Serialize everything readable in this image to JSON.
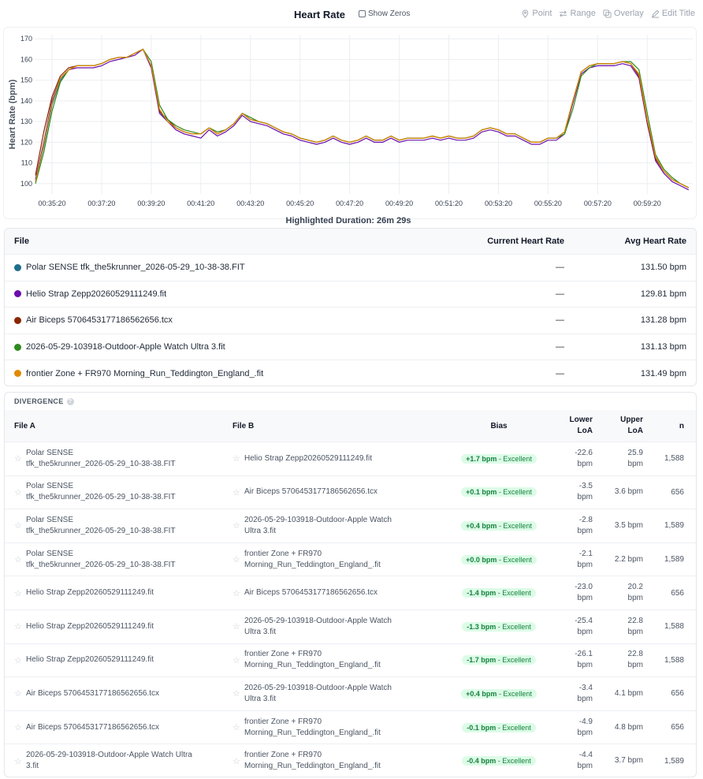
{
  "header": {
    "title": "Heart Rate",
    "show_zeros_label": "Show Zeros",
    "tools": [
      {
        "label": "Point",
        "icon": "pin-icon"
      },
      {
        "label": "Range",
        "icon": "range-arrows-icon"
      },
      {
        "label": "Overlay",
        "icon": "overlay-icon"
      },
      {
        "label": "Edit Title",
        "icon": "edit-icon"
      }
    ]
  },
  "chart_data": {
    "type": "line",
    "ylabel": "Heart Rate (bpm)",
    "xlabel": "",
    "ylim": [
      95,
      172
    ],
    "yticks": [
      100,
      110,
      120,
      130,
      140,
      150,
      160,
      170
    ],
    "xlim": [
      "00:34:40",
      "01:01:10"
    ],
    "xticks": [
      "00:35:20",
      "00:37:20",
      "00:39:20",
      "00:41:20",
      "00:43:20",
      "00:45:20",
      "00:47:20",
      "00:49:20",
      "00:51:20",
      "00:53:20",
      "00:55:20",
      "00:57:20",
      "00:59:20"
    ],
    "grid": true,
    "x": [
      "00:34:40",
      "00:35:00",
      "00:35:20",
      "00:35:40",
      "00:36:00",
      "00:36:20",
      "00:36:40",
      "00:37:00",
      "00:37:20",
      "00:37:40",
      "00:38:00",
      "00:38:20",
      "00:38:40",
      "00:39:00",
      "00:39:20",
      "00:39:40",
      "00:40:00",
      "00:40:20",
      "00:40:40",
      "00:41:00",
      "00:41:20",
      "00:41:40",
      "00:42:00",
      "00:42:20",
      "00:42:40",
      "00:43:00",
      "00:43:20",
      "00:43:40",
      "00:44:00",
      "00:44:20",
      "00:44:40",
      "00:45:00",
      "00:45:20",
      "00:45:40",
      "00:46:00",
      "00:46:20",
      "00:46:40",
      "00:47:00",
      "00:47:20",
      "00:47:40",
      "00:48:00",
      "00:48:20",
      "00:48:40",
      "00:49:00",
      "00:49:20",
      "00:49:40",
      "00:50:00",
      "00:50:20",
      "00:50:40",
      "00:51:00",
      "00:51:20",
      "00:51:40",
      "00:52:00",
      "00:52:20",
      "00:52:40",
      "00:53:00",
      "00:53:20",
      "00:53:40",
      "00:54:00",
      "00:54:20",
      "00:54:40",
      "00:55:00",
      "00:55:20",
      "00:55:40",
      "00:56:00",
      "00:56:20",
      "00:56:40",
      "00:57:00",
      "00:57:20",
      "00:57:40",
      "00:58:00",
      "00:58:20",
      "00:58:40",
      "00:59:00",
      "00:59:20",
      "00:59:40",
      "01:00:00",
      "01:00:20",
      "01:00:40",
      "01:01:00"
    ],
    "series": [
      {
        "color": "#1f6e8c",
        "values": [
          101,
          118,
          138,
          150,
          155,
          157,
          157,
          157,
          158,
          160,
          161,
          161,
          163,
          165,
          157,
          135,
          130,
          127,
          125,
          124,
          124,
          127,
          124,
          126,
          129,
          134,
          131,
          130,
          129,
          127,
          125,
          124,
          122,
          121,
          120,
          121,
          123,
          121,
          120,
          121,
          123,
          121,
          121,
          123,
          121,
          122,
          122,
          122,
          123,
          122,
          123,
          122,
          122,
          123,
          126,
          127,
          126,
          124,
          124,
          122,
          120,
          120,
          122,
          122,
          125,
          140,
          154,
          157,
          158,
          158,
          158,
          159,
          158,
          152,
          130,
          112,
          106,
          102,
          100,
          98
        ]
      },
      {
        "color": "#6a0dad",
        "values": [
          102,
          120,
          140,
          151,
          155,
          156,
          156,
          156,
          157,
          159,
          160,
          161,
          162,
          165,
          156,
          134,
          130,
          126,
          124,
          123,
          122,
          126,
          123,
          125,
          128,
          133,
          130,
          129,
          128,
          126,
          124,
          123,
          121,
          120,
          119,
          120,
          122,
          120,
          119,
          120,
          122,
          120,
          120,
          122,
          120,
          121,
          121,
          121,
          122,
          121,
          122,
          121,
          121,
          122,
          125,
          126,
          125,
          123,
          123,
          121,
          119,
          119,
          121,
          121,
          124,
          139,
          153,
          156,
          157,
          157,
          157,
          158,
          157,
          151,
          129,
          111,
          105,
          101,
          99,
          97
        ]
      },
      {
        "color": "#8b2500",
        "values": [
          104,
          125,
          142,
          152,
          156,
          157,
          157,
          157,
          158,
          160,
          161,
          161,
          163,
          165,
          157,
          135,
          131,
          127,
          125,
          124,
          124,
          127,
          124,
          126,
          129,
          134,
          131,
          130,
          129,
          127,
          125,
          124,
          122,
          121,
          120,
          121,
          123,
          121,
          120,
          121,
          123,
          121,
          121,
          123,
          121,
          122,
          122,
          122,
          123,
          122,
          123,
          122,
          122,
          123,
          126,
          127,
          126,
          124,
          124,
          122,
          120,
          120,
          122,
          122,
          125,
          140,
          154,
          157,
          158,
          158,
          158,
          159,
          158,
          152,
          130,
          112,
          106,
          102,
          100,
          98
        ]
      },
      {
        "color": "#2e8b1e",
        "values": [
          100,
          115,
          135,
          149,
          155,
          157,
          157,
          157,
          158,
          160,
          161,
          161,
          163,
          165,
          159,
          138,
          131,
          128,
          126,
          125,
          124,
          127,
          125,
          126,
          129,
          134,
          132,
          130,
          129,
          127,
          125,
          124,
          122,
          121,
          120,
          121,
          123,
          121,
          120,
          121,
          123,
          121,
          121,
          123,
          121,
          122,
          122,
          122,
          123,
          122,
          123,
          122,
          122,
          123,
          126,
          127,
          126,
          124,
          124,
          122,
          120,
          120,
          122,
          122,
          124,
          136,
          152,
          156,
          158,
          158,
          158,
          159,
          159,
          155,
          134,
          114,
          107,
          103,
          100,
          98
        ]
      },
      {
        "color": "#e08a00",
        "values": [
          101,
          119,
          139,
          151,
          155,
          157,
          157,
          157,
          158,
          160,
          161,
          161,
          163,
          165,
          157,
          136,
          130,
          127,
          125,
          124,
          124,
          127,
          124,
          126,
          129,
          134,
          131,
          130,
          129,
          127,
          125,
          124,
          122,
          121,
          120,
          121,
          123,
          121,
          120,
          121,
          123,
          121,
          121,
          123,
          121,
          122,
          122,
          122,
          123,
          122,
          123,
          122,
          122,
          123,
          126,
          127,
          126,
          124,
          124,
          122,
          120,
          120,
          122,
          122,
          125,
          140,
          154,
          157,
          158,
          158,
          158,
          159,
          158,
          153,
          131,
          113,
          106,
          102,
          100,
          98
        ]
      }
    ]
  },
  "highlighted_duration": "Highlighted Duration: 26m 29s",
  "files_table": {
    "headers": {
      "file": "File",
      "current": "Current Heart Rate",
      "avg": "Avg Heart Rate"
    },
    "rows": [
      {
        "color": "#1f6e8c",
        "name": "Polar SENSE tfk_the5krunner_2026-05-29_10-38-38.FIT",
        "current": "—",
        "avg": "131.50 bpm"
      },
      {
        "color": "#6a0dad",
        "name": "Helio Strap Zepp20260529111249.fit",
        "current": "—",
        "avg": "129.81 bpm"
      },
      {
        "color": "#8b2500",
        "name": "Air Biceps 5706453177186562656.tcx",
        "current": "—",
        "avg": "131.28 bpm"
      },
      {
        "color": "#2e8b1e",
        "name": "2026-05-29-103918-Outdoor-Apple Watch Ultra 3.fit",
        "current": "—",
        "avg": "131.13 bpm"
      },
      {
        "color": "#e08a00",
        "name": "frontier Zone + FR970 Morning_Run_Teddington_England_.fit",
        "current": "—",
        "avg": "131.49 bpm"
      }
    ]
  },
  "divergence": {
    "title": "DIVERGENCE",
    "headers": {
      "a": "File A",
      "b": "File B",
      "bias": "Bias",
      "lower1": "Lower",
      "lower2": "LoA",
      "upper1": "Upper",
      "upper2": "LoA",
      "n": "n"
    },
    "unit": "bpm",
    "rating": "Excellent",
    "rows": [
      {
        "a1": "Polar SENSE",
        "a2": "tfk_the5krunner_2026-05-29_10-38-38.FIT",
        "b1": "Helio Strap Zepp20260529111249.fit",
        "b2": "",
        "bias": "+1.7 bpm",
        "lower": "-22.6",
        "upper": "25.9",
        "n": "1,588"
      },
      {
        "a1": "Polar SENSE",
        "a2": "tfk_the5krunner_2026-05-29_10-38-38.FIT",
        "b1": "Air Biceps 5706453177186562656.tcx",
        "b2": "",
        "bias": "+0.1 bpm",
        "lower": "-3.5",
        "upper": "3.6 bpm",
        "n": "656"
      },
      {
        "a1": "Polar SENSE",
        "a2": "tfk_the5krunner_2026-05-29_10-38-38.FIT",
        "b1": "2026-05-29-103918-Outdoor-Apple Watch",
        "b2": "Ultra 3.fit",
        "bias": "+0.4 bpm",
        "lower": "-2.8",
        "upper": "3.5 bpm",
        "n": "1,589"
      },
      {
        "a1": "Polar SENSE",
        "a2": "tfk_the5krunner_2026-05-29_10-38-38.FIT",
        "b1": "frontier Zone + FR970",
        "b2": "Morning_Run_Teddington_England_.fit",
        "bias": "+0.0 bpm",
        "lower": "-2.1",
        "upper": "2.2 bpm",
        "n": "1,589"
      },
      {
        "a1": "Helio Strap Zepp20260529111249.fit",
        "a2": "",
        "b1": "Air Biceps 5706453177186562656.tcx",
        "b2": "",
        "bias": "-1.4 bpm",
        "lower": "-23.0",
        "upper": "20.2",
        "n": "656"
      },
      {
        "a1": "Helio Strap Zepp20260529111249.fit",
        "a2": "",
        "b1": "2026-05-29-103918-Outdoor-Apple Watch",
        "b2": "Ultra 3.fit",
        "bias": "-1.3 bpm",
        "lower": "-25.4",
        "upper": "22.8",
        "n": "1,588"
      },
      {
        "a1": "Helio Strap Zepp20260529111249.fit",
        "a2": "",
        "b1": "frontier Zone + FR970",
        "b2": "Morning_Run_Teddington_England_.fit",
        "bias": "-1.7 bpm",
        "lower": "-26.1",
        "upper": "22.8",
        "n": "1,588"
      },
      {
        "a1": "Air Biceps 5706453177186562656.tcx",
        "a2": "",
        "b1": "2026-05-29-103918-Outdoor-Apple Watch",
        "b2": "Ultra 3.fit",
        "bias": "+0.4 bpm",
        "lower": "-3.4",
        "upper": "4.1 bpm",
        "n": "656"
      },
      {
        "a1": "Air Biceps 5706453177186562656.tcx",
        "a2": "",
        "b1": "frontier Zone + FR970",
        "b2": "Morning_Run_Teddington_England_.fit",
        "bias": "-0.1 bpm",
        "lower": "-4.9",
        "upper": "4.8 bpm",
        "n": "656"
      },
      {
        "a1": "2026-05-29-103918-Outdoor-Apple Watch Ultra",
        "a2": "3.fit",
        "b1": "frontier Zone + FR970",
        "b2": "Morning_Run_Teddington_England_.fit",
        "bias": "-0.4 bpm",
        "lower": "-4.4",
        "upper": "3.7 bpm",
        "n": "1,589"
      }
    ]
  }
}
